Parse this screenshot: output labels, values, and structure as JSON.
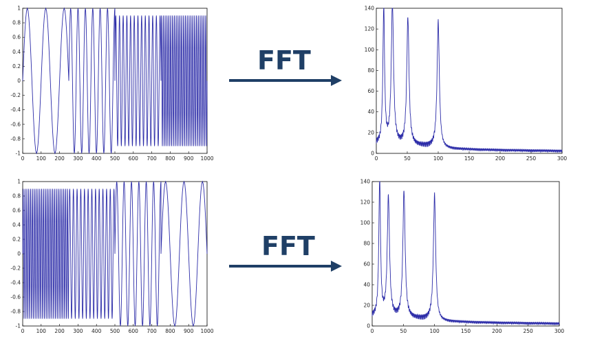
{
  "colors": {
    "trace": "#2b2ba8",
    "arrow": "#1f3f66"
  },
  "arrows": [
    {
      "label": "FFT"
    },
    {
      "label": "FFT"
    }
  ],
  "chart_data": [
    {
      "type": "line",
      "name_hint": "top-left time-domain signal",
      "xlim": [
        0,
        1000
      ],
      "ylim": [
        -1,
        1
      ],
      "xticks": [
        0,
        100,
        200,
        300,
        400,
        500,
        600,
        700,
        800,
        900,
        1000
      ],
      "yticks": [
        1,
        0.8,
        0.6,
        0.4,
        0.2,
        0,
        -0.2,
        -0.4,
        -0.6,
        -0.8,
        -1
      ],
      "segments": [
        {
          "x_start": 0,
          "x_end": 250,
          "cycles_per_unit": 0.01
        },
        {
          "x_start": 250,
          "x_end": 500,
          "cycles_per_unit": 0.025
        },
        {
          "x_start": 500,
          "x_end": 750,
          "cycles_per_unit": 0.05
        },
        {
          "x_start": 750,
          "x_end": 1000,
          "cycles_per_unit": 0.1
        }
      ]
    },
    {
      "type": "line",
      "name_hint": "top-right spectrum",
      "xlim": [
        0,
        300
      ],
      "ylim": [
        0,
        140
      ],
      "xticks": [
        0,
        50,
        100,
        150,
        200,
        250,
        300
      ],
      "yticks": [
        140,
        120,
        100,
        80,
        60,
        40,
        20,
        0
      ],
      "peaks": [
        {
          "x": 12,
          "y": 133
        },
        {
          "x": 26,
          "y": 136
        },
        {
          "x": 51,
          "y": 123
        },
        {
          "x": 100,
          "y": 121
        }
      ]
    },
    {
      "type": "line",
      "name_hint": "bottom-left time-domain signal",
      "xlim": [
        0,
        1000
      ],
      "ylim": [
        -1,
        1
      ],
      "xticks": [
        0,
        100,
        200,
        300,
        400,
        500,
        600,
        700,
        800,
        900,
        1000
      ],
      "yticks": [
        1,
        0.8,
        0.6,
        0.4,
        0.2,
        0,
        -0.2,
        -0.4,
        -0.6,
        -0.8,
        -1
      ],
      "segments": [
        {
          "x_start": 0,
          "x_end": 250,
          "cycles_per_unit": 0.1
        },
        {
          "x_start": 250,
          "x_end": 500,
          "cycles_per_unit": 0.05
        },
        {
          "x_start": 500,
          "x_end": 750,
          "cycles_per_unit": 0.025
        },
        {
          "x_start": 750,
          "x_end": 1000,
          "cycles_per_unit": 0.01
        }
      ]
    },
    {
      "type": "line",
      "name_hint": "bottom-right spectrum",
      "xlim": [
        0,
        300
      ],
      "ylim": [
        0,
        140
      ],
      "xticks": [
        0,
        50,
        100,
        150,
        200,
        250,
        300
      ],
      "yticks": [
        140,
        120,
        100,
        80,
        60,
        40,
        20,
        0
      ],
      "peaks": [
        {
          "x": 12,
          "y": 134
        },
        {
          "x": 26,
          "y": 116
        },
        {
          "x": 51,
          "y": 123
        },
        {
          "x": 100,
          "y": 121
        }
      ]
    }
  ]
}
